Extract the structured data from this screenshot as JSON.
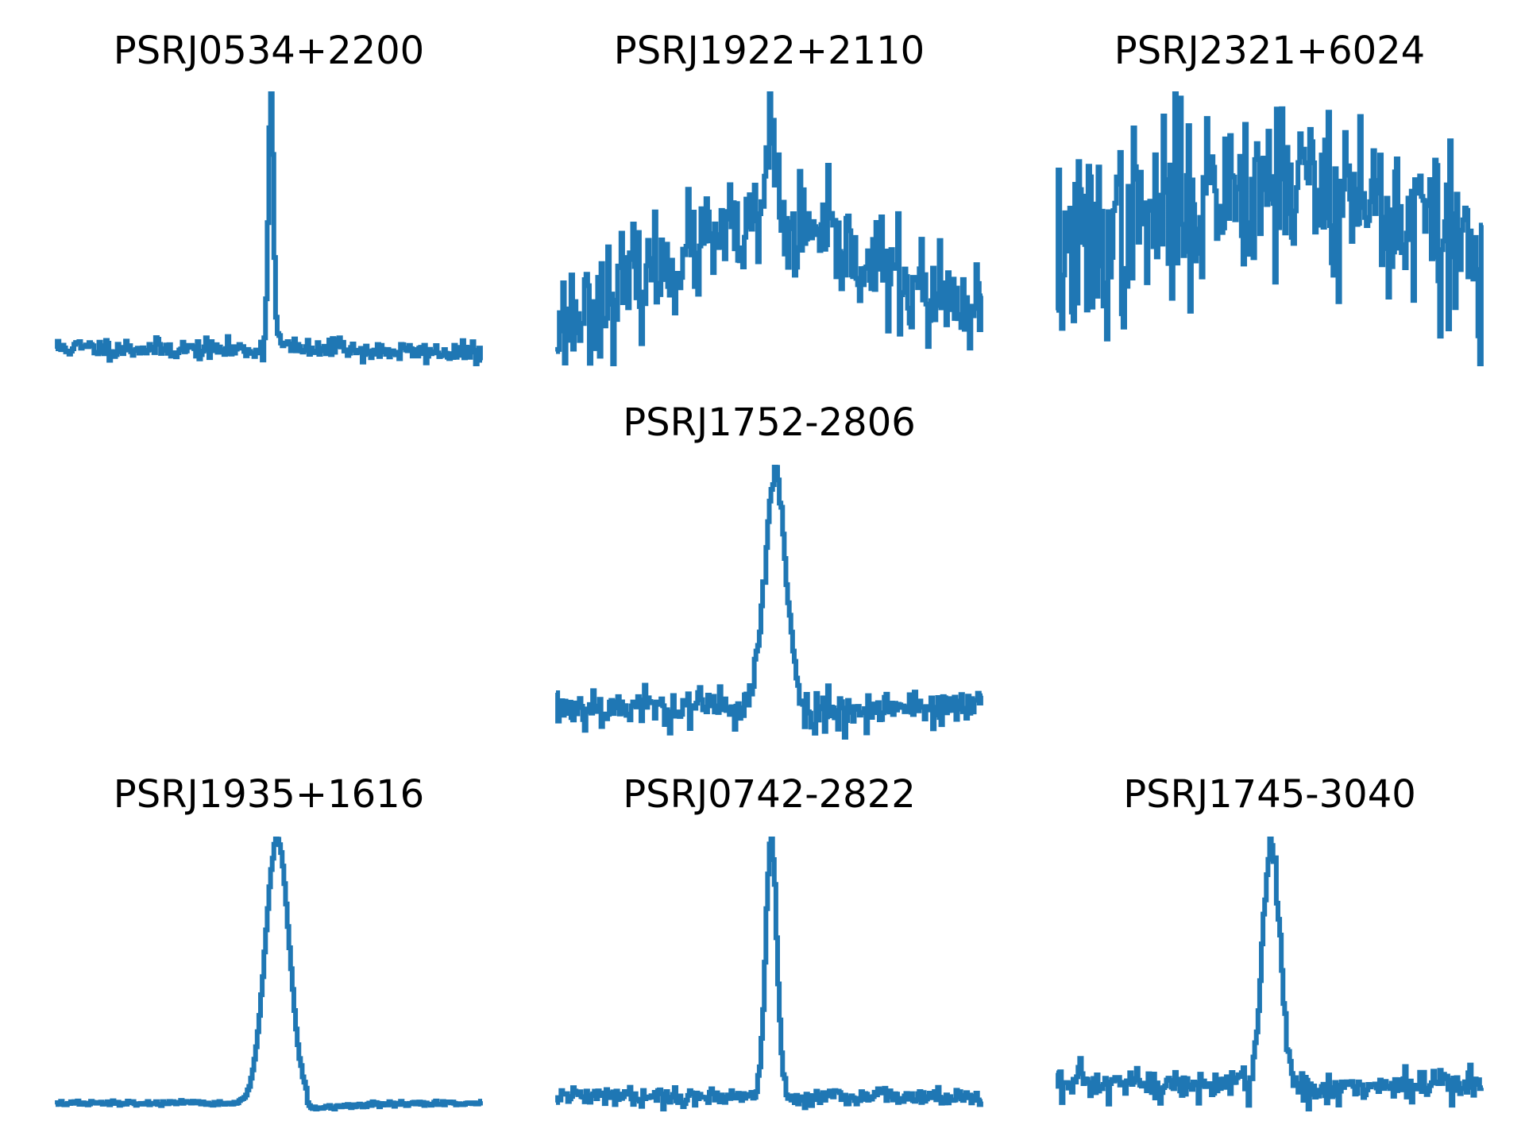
{
  "figure": {
    "panel_rows": 3,
    "panel_cols": 3
  },
  "style": {
    "line_color": "#1f77b4",
    "background": "#ffffff"
  },
  "chart_data": [
    {
      "type": "line",
      "title": "PSRJ0534+2200",
      "panel": [
        0,
        0
      ],
      "axes_visible": false,
      "profile": {
        "baseline": 0.06,
        "baseline_slope": -0.02,
        "noise": 0.018,
        "pulse_center": 0.505,
        "pulse_width": 0.006,
        "pulse_height": 0.94,
        "tail": 0.06,
        "secondary_center": 0.67,
        "secondary_height": 0.04,
        "secondary_width": 0.01,
        "seed": 11
      }
    },
    {
      "type": "line",
      "title": "PSRJ1922+2110",
      "panel": [
        0,
        1
      ],
      "axes_visible": false,
      "profile": {
        "baseline": 0.18,
        "hump_height": 0.45,
        "hump_center": 0.5,
        "hump_width": 0.32,
        "noise": 0.09,
        "pulse_center": 0.505,
        "pulse_width": 0.012,
        "pulse_height": 0.35,
        "seed": 23
      }
    },
    {
      "type": "line",
      "title": "PSRJ2321+6024",
      "panel": [
        0,
        2
      ],
      "axes_visible": false,
      "profile": {
        "baseline": 0.42,
        "hump_height": 0.35,
        "hump_center": 0.52,
        "hump_width": 0.3,
        "noise": 0.16,
        "seed": 37
      }
    },
    {
      "type": "line",
      "title": "PSRJ1752-2806",
      "panel": [
        1,
        1
      ],
      "axes_visible": false,
      "profile": {
        "baseline": 0.16,
        "noise": 0.035,
        "pulse_center": 0.515,
        "pulse_width": 0.025,
        "pulse_height": 0.8,
        "post_dip": -0.03,
        "seed": 53
      }
    },
    {
      "type": "line",
      "title": "PSRJ1935+1616",
      "panel": [
        2,
        0
      ],
      "axes_visible": false,
      "profile": {
        "baseline": 0.05,
        "noise": 0.004,
        "pulse_center": 0.52,
        "pulse_width": 0.028,
        "pulse_height": 0.93,
        "post_dip": -0.03,
        "seed": 67
      }
    },
    {
      "type": "line",
      "title": "PSRJ0742-2822",
      "panel": [
        2,
        1
      ],
      "axes_visible": false,
      "profile": {
        "baseline": 0.06,
        "noise": 0.015,
        "pulse_center": 0.505,
        "pulse_width": 0.013,
        "pulse_height": 0.93,
        "post_dip": -0.01,
        "seed": 79
      }
    },
    {
      "type": "line",
      "title": "PSRJ1745-3040",
      "panel": [
        2,
        2
      ],
      "axes_visible": false,
      "profile": {
        "baseline": 0.13,
        "noise": 0.03,
        "pulse_center": 0.505,
        "pulse_width": 0.02,
        "pulse_height": 0.82,
        "post_dip": -0.02,
        "seed": 97
      }
    }
  ]
}
